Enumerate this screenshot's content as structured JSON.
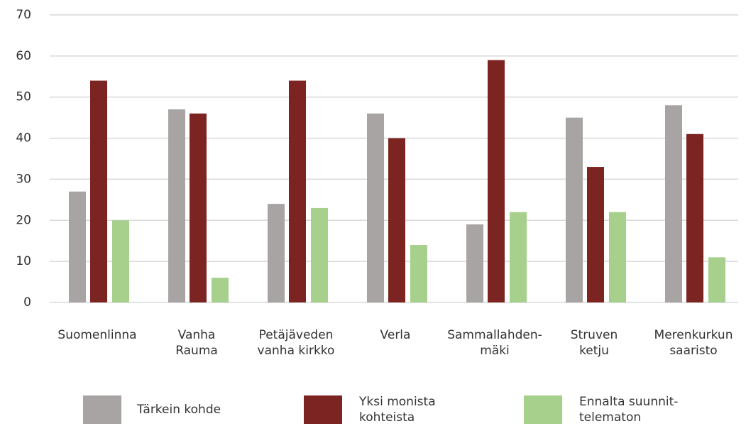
{
  "chart_data": {
    "type": "bar",
    "categories": [
      "Suomenlinna",
      "Vanha\nRauma",
      "Petäjäveden\nvanha kirkko",
      "Verla",
      "Sammallahden-\nmäki",
      "Struven\nketju",
      "Merenkurkun\nsaaristo"
    ],
    "series": [
      {
        "name": "Tärkein kohde",
        "color": "#a8a4a3",
        "values": [
          27,
          47,
          24,
          46,
          19,
          45,
          48
        ]
      },
      {
        "name": "Yksi monista\nkohteista",
        "color": "#7b2421",
        "values": [
          54,
          46,
          54,
          40,
          59,
          33,
          41
        ]
      },
      {
        "name": "Ennalta suunnit-\ntelematon",
        "color": "#a6d08c",
        "values": [
          20,
          6,
          23,
          14,
          22,
          22,
          11
        ]
      }
    ],
    "ylim": [
      0,
      70
    ],
    "yticks": [
      0,
      10,
      20,
      30,
      40,
      50,
      60,
      70
    ],
    "grid": true,
    "legend": "bottom"
  }
}
